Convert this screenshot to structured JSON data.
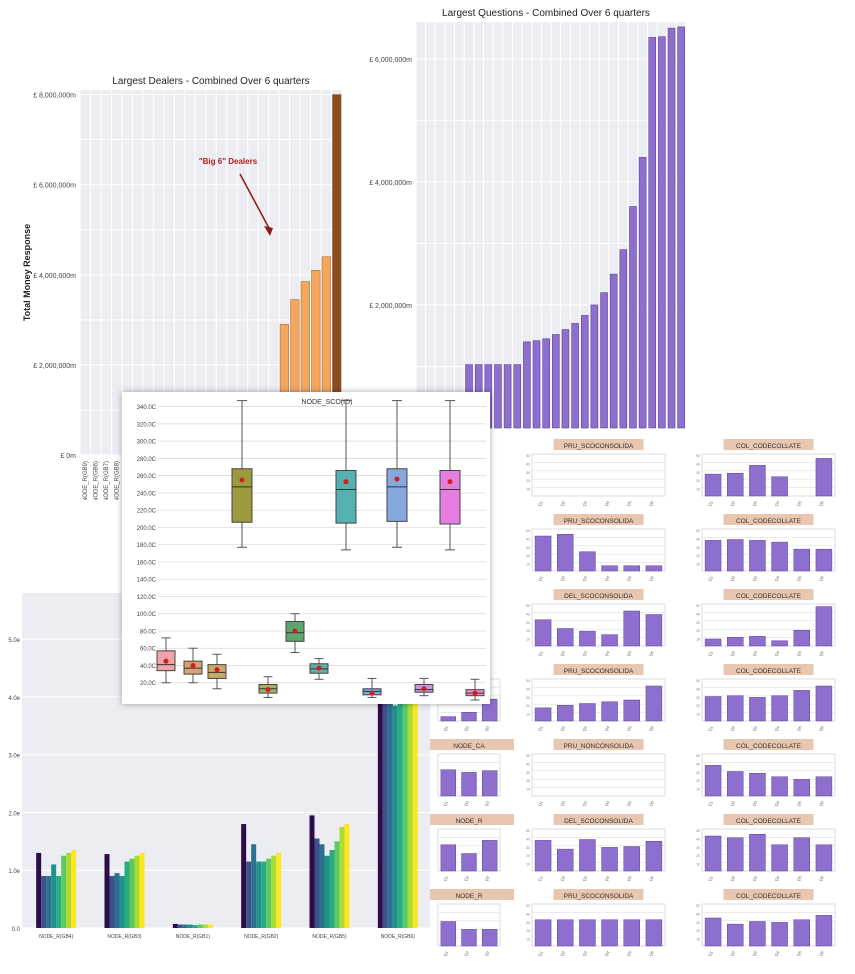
{
  "chart_data": [
    {
      "id": "questions",
      "type": "bar",
      "title": "Largest Questions - Combined Over 6 quarters",
      "color": "#8e6fce",
      "ylim": [
        0,
        6600000
      ],
      "yticks": [
        1000000,
        2000000,
        3000000,
        4000000,
        5000000,
        6000000
      ],
      "ytick_labels": [
        "",
        "£ 2,000,000m",
        "",
        "£ 4,000,000m",
        "",
        "£ 6,000,000m"
      ],
      "values": [
        20000,
        20000,
        30000,
        100000,
        200000,
        1030000,
        1030000,
        1030000,
        1030000,
        1030000,
        1030000,
        1400000,
        1420000,
        1450000,
        1520000,
        1600000,
        1700000,
        1830000,
        2000000,
        2200000,
        2500000,
        2900000,
        3600000,
        4400000,
        6350000,
        6360000,
        6500000,
        6520000
      ]
    },
    {
      "id": "dealers",
      "type": "bar",
      "title": "Largest Dealers - Combined Over 6 quarters",
      "ylabel": "Total Money Response",
      "annotation": "\"Big 6\" Dealers",
      "color_main": "#f2a65e",
      "color_last": "#8b4c22",
      "ylim": [
        0,
        8100000
      ],
      "yticks": [
        0,
        1000000,
        2000000,
        3000000,
        4000000,
        5000000,
        6000000,
        7000000,
        8000000
      ],
      "ytick_labels": [
        "£ 0m",
        "",
        "£ 2,000,000m",
        "",
        "£ 4,000,000m",
        "",
        "£ 6,000,000m",
        "",
        "£ 8,000,000m"
      ],
      "x_labels": [
        "NODE_R(GB9)",
        "NODE_R(GB6)",
        "NODE_R(GB7)",
        "NODE_R(GB8)"
      ],
      "values": [
        0,
        0,
        0,
        0,
        0,
        0,
        0,
        0,
        0,
        0,
        0,
        0,
        0,
        0,
        0,
        0,
        0,
        0,
        0,
        2900000,
        3450000,
        3850000,
        4100000,
        4400000,
        8000000
      ]
    },
    {
      "id": "grouped",
      "type": "bar",
      "ylim": [
        0,
        5800
      ],
      "yticks": [
        0,
        1000,
        2000,
        3000,
        4000,
        5000
      ],
      "ytick_labels": [
        "0.0",
        "1.0e",
        "2.0e",
        "3.0e",
        "4.0e",
        "5.0e"
      ],
      "palette": [
        "#2d0c4a",
        "#3b528b",
        "#2c728e",
        "#21918c",
        "#27ad81",
        "#5ec962",
        "#aadc32",
        "#fde725"
      ],
      "categories": [
        "NODE_R(GB4)",
        "NODE_R(GB3)",
        "NODE_R(GB1)",
        "NODE_R(GB2)",
        "NODE_R(GB5)",
        "NODE_R(GB6)"
      ],
      "groups": [
        [
          1300,
          900,
          900,
          1100,
          900,
          1250,
          1300,
          1350
        ],
        [
          1280,
          900,
          950,
          900,
          1150,
          1200,
          1250,
          1300
        ],
        [
          70,
          60,
          60,
          60,
          50,
          60,
          60,
          60
        ],
        [
          1800,
          1150,
          1450,
          1150,
          1150,
          1200,
          1250,
          1300
        ],
        [
          1950,
          1550,
          1450,
          1250,
          1350,
          1500,
          1750,
          1800
        ],
        [
          5000,
          4650,
          4000,
          3850,
          4200,
          4650,
          5000,
          5100
        ]
      ]
    },
    {
      "id": "smalls",
      "type": "bar",
      "color": "#8e6fce",
      "label_bg": "#e8c6b0",
      "columns": [
        [
          {
            "title": "",
            "values": [],
            "hidden": true
          },
          {
            "title": "",
            "values": [],
            "hidden": true
          },
          {
            "title": "",
            "values": [],
            "hidden": true
          },
          {
            "title": "",
            "values": [
              5,
              10,
              25
            ],
            "partial": true
          },
          {
            "title": "NODE_CA",
            "values": [
              30,
              27,
              29
            ]
          },
          {
            "title": "NODE_R",
            "values": [
              30,
              20,
              35
            ]
          },
          {
            "title": "NODE_R",
            "values": [
              28,
              19,
              19
            ]
          }
        ],
        [
          {
            "title": "PRU_SCOCONSOLIDA",
            "values": []
          },
          {
            "title": "PRU_SCOCONSOLIDA",
            "values": [
              40,
              42,
              22,
              6,
              6,
              6
            ]
          },
          {
            "title": "DEL_SCOCONSOLIDA",
            "values": [
              30,
              20,
              17,
              13,
              40,
              36
            ]
          },
          {
            "title": "PRU_SCOCONSOLIDA",
            "values": [
              15,
              18,
              20,
              22,
              24,
              40
            ]
          },
          {
            "title": "PRU_NONCONSOLIDA",
            "values": []
          },
          {
            "title": "DEL_SCOCONSOLIDA",
            "values": [
              35,
              25,
              36,
              27,
              28,
              34
            ]
          },
          {
            "title": "PRU_SCOCONSOLIDA",
            "values": [
              30,
              30,
              30,
              30,
              30,
              30
            ]
          }
        ],
        [
          {
            "title": "COL_CODECOLLATE",
            "values": [
              25,
              26,
              35,
              22,
              0,
              43
            ]
          },
          {
            "title": "COL_CODECOLLATE",
            "values": [
              35,
              36,
              35,
              33,
              25,
              25
            ]
          },
          {
            "title": "COL_CODECOLLATE",
            "values": [
              8,
              10,
              11,
              6,
              18,
              45
            ]
          },
          {
            "title": "COL_CODECOLLATE",
            "values": [
              28,
              29,
              27,
              29,
              35,
              40
            ]
          },
          {
            "title": "COL_CODECOLLATE",
            "values": [
              35,
              28,
              26,
              22,
              19,
              22
            ]
          },
          {
            "title": "COL_CODECOLLATE",
            "values": [
              40,
              38,
              42,
              30,
              38,
              30
            ]
          },
          {
            "title": "COL_CODECOLLATE",
            "values": [
              32,
              25,
              28,
              27,
              30,
              35
            ]
          }
        ]
      ]
    },
    {
      "id": "boxplots",
      "type": "box",
      "title": "NODE_SCO(ID)",
      "ylim": [
        0,
        350
      ],
      "yticks": [
        20,
        40,
        60,
        80,
        100,
        120,
        140,
        160,
        180,
        200,
        220,
        240,
        260,
        280,
        300,
        320,
        340
      ],
      "ytick_labels": [
        "20.0C",
        "40.0C",
        "60.0C",
        "80.0C",
        "100.0C",
        "120.0C",
        "140.0C",
        "160.0C",
        "180.0C",
        "200.0C",
        "220.0C",
        "240.0C",
        "260.0C",
        "280.0C",
        "300.0C",
        "320.0C",
        "340.0C"
      ],
      "upper": [
        {
          "color": "#9b9a3c",
          "whislo": 177,
          "q1": 206,
          "med": 247,
          "q3": 268,
          "whishi": 361,
          "mean": 255
        },
        {
          "color": "#56b0b1",
          "whislo": 174,
          "q1": 205,
          "med": 244,
          "q3": 266,
          "whishi": 355,
          "mean": 253
        },
        {
          "color": "#86a8df",
          "whislo": 177,
          "q1": 207,
          "med": 247,
          "q3": 268,
          "whishi": 355,
          "mean": 256
        },
        {
          "color": "#e47fe0",
          "whislo": 174,
          "q1": 204,
          "med": 244,
          "q3": 266,
          "whishi": 355,
          "mean": 253
        }
      ],
      "lower": [
        {
          "color": "#f0a3a8",
          "whislo": 20,
          "q1": 34,
          "med": 41,
          "q3": 57,
          "whishi": 72,
          "mean": 45
        },
        {
          "color": "#d9a070",
          "whislo": 20,
          "q1": 30,
          "med": 37,
          "q3": 45,
          "whishi": 60,
          "mean": 40
        },
        {
          "color": "#c8aa6a",
          "whislo": 13,
          "q1": 25,
          "med": 32,
          "q3": 41,
          "whishi": 53,
          "mean": 35
        },
        {
          "color": "#a2b25e",
          "whislo": 3,
          "q1": 8,
          "med": 13,
          "q3": 18,
          "whishi": 27,
          "mean": 12
        },
        {
          "color": "#5fa66d",
          "whislo": 55,
          "q1": 68,
          "med": 78,
          "q3": 91,
          "whishi": 100,
          "mean": 80
        },
        {
          "color": "#5fb0a7",
          "whislo": 24,
          "q1": 31,
          "med": 36,
          "q3": 42,
          "whishi": 48,
          "mean": 37
        },
        {
          "color": "#6faee0",
          "whislo": 3,
          "q1": 6,
          "med": 10,
          "q3": 13,
          "whishi": 25,
          "mean": 8
        },
        {
          "color": "#c697df",
          "whislo": 5,
          "q1": 9,
          "med": 12,
          "q3": 18,
          "whishi": 25,
          "mean": 13
        },
        {
          "color": "#ee90c5",
          "whislo": 0,
          "q1": 5,
          "med": 8,
          "q3": 12,
          "whishi": 24,
          "mean": 8
        }
      ]
    }
  ]
}
